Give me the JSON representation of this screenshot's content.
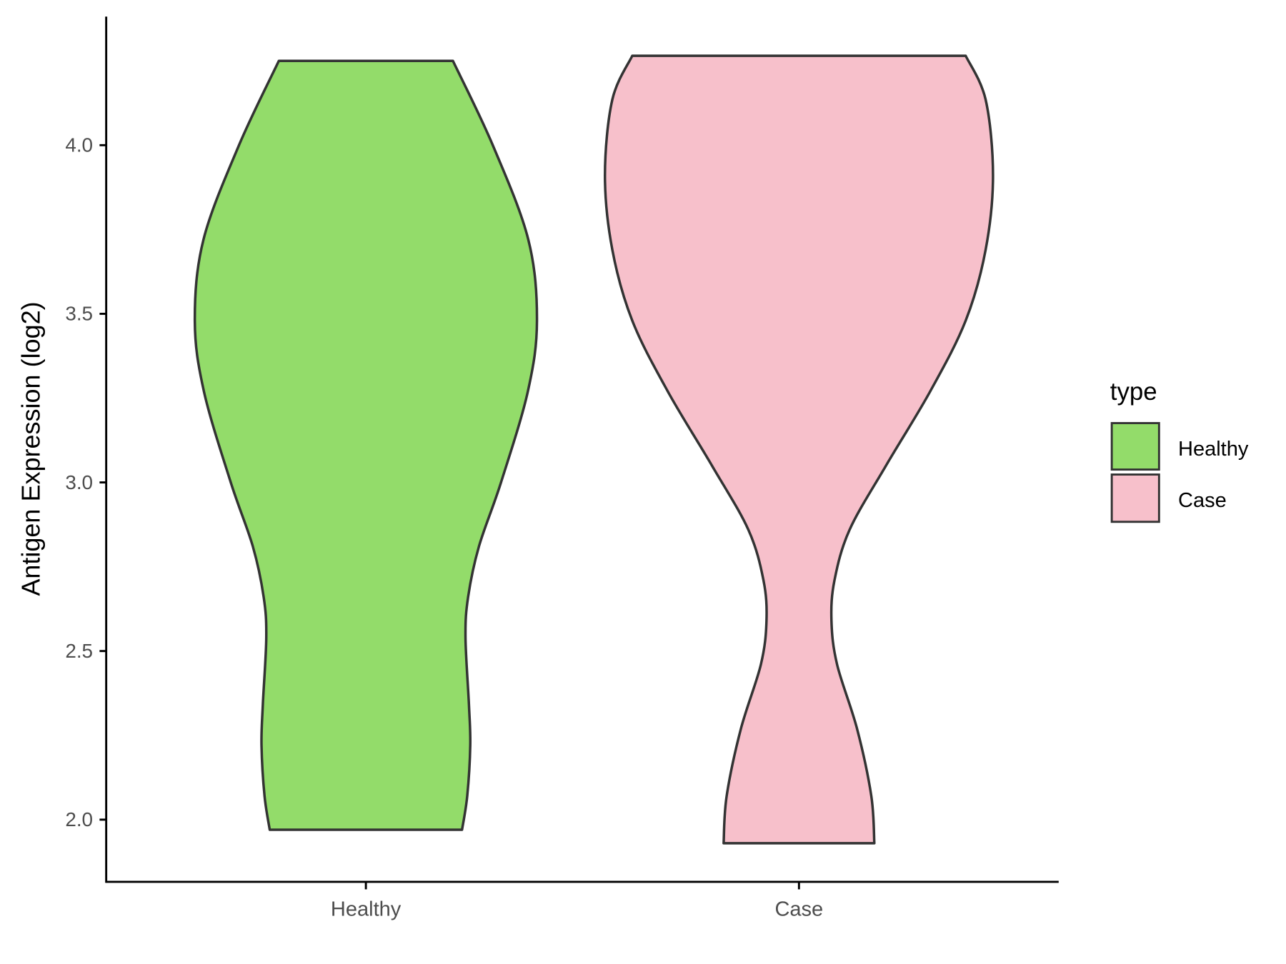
{
  "chart_data": {
    "type": "violin",
    "title": "",
    "xlabel": "",
    "ylabel": "Antigen Expression (log2)",
    "categories": [
      "Healthy",
      "Case"
    ],
    "ylim": [
      1.815,
      4.381
    ],
    "yticks": [
      "2.0",
      "2.5",
      "3.0",
      "3.5",
      "4.0"
    ],
    "grid": false,
    "legend": {
      "title": "type",
      "position": "right",
      "entries": [
        "Healthy",
        "Case"
      ]
    },
    "colors": {
      "Healthy": "#93dc6a",
      "Case": "#f7c0cb",
      "outline": "#333333"
    },
    "series": [
      {
        "name": "Healthy",
        "y": [
          1.97,
          2.07,
          2.22,
          2.34,
          2.54,
          2.66,
          2.81,
          3.0,
          3.27,
          3.48,
          3.72,
          4.0,
          4.25
        ],
        "halfwidth": [
          0.222,
          0.234,
          0.241,
          0.238,
          0.23,
          0.236,
          0.261,
          0.312,
          0.374,
          0.395,
          0.375,
          0.293,
          0.201
        ]
      },
      {
        "name": "Case",
        "y": [
          1.93,
          2.07,
          2.27,
          2.46,
          2.59,
          2.71,
          2.86,
          3.05,
          3.27,
          3.48,
          3.69,
          3.91,
          4.135,
          4.265
        ],
        "halfwidth": [
          0.174,
          0.167,
          0.134,
          0.088,
          0.075,
          0.082,
          0.117,
          0.201,
          0.303,
          0.385,
          0.431,
          0.448,
          0.431,
          0.385
        ]
      }
    ]
  }
}
